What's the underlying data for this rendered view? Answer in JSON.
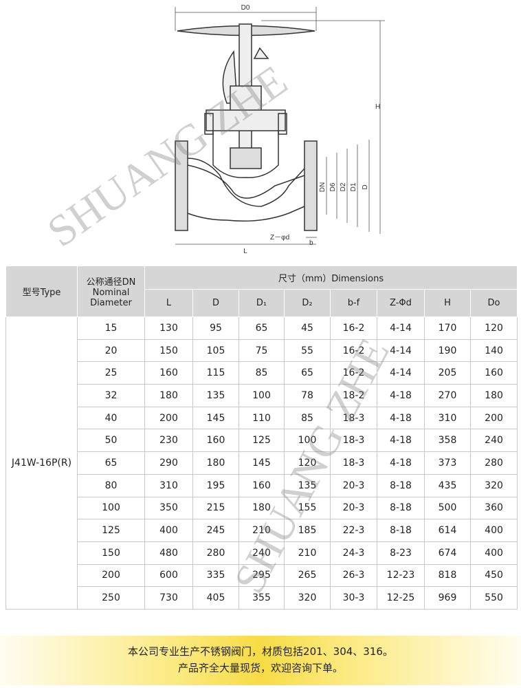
{
  "drawing": {
    "labels": {
      "d0": "D0",
      "h": "H",
      "dn": "DN",
      "d6": "D6",
      "d2": "D2",
      "d1": "D1",
      "d": "D",
      "z": "Z－φd",
      "b": "b",
      "l": "L"
    }
  },
  "watermark": [
    "SHUANG ZHE",
    "SHUANG ZHE"
  ],
  "table": {
    "header": {
      "type": "型号Type",
      "dn_cn": "公称通径DN",
      "dn_en": "Nominal Diameter",
      "dimensions": "尺寸（mm）Dimensions",
      "columns": [
        "L",
        "D",
        "D₁",
        "D₂",
        "b-f",
        "Z-Φd",
        "H",
        "Do"
      ]
    },
    "model": "J41W-16P(R)",
    "rows": [
      [
        15,
        130,
        95,
        65,
        45,
        "16-2",
        "4-14",
        170,
        120
      ],
      [
        20,
        150,
        105,
        75,
        55,
        "16-2",
        "4-14",
        190,
        140
      ],
      [
        25,
        160,
        115,
        85,
        65,
        "16-2",
        "4-14",
        205,
        160
      ],
      [
        32,
        180,
        135,
        100,
        78,
        "18-2",
        "4-18",
        270,
        180
      ],
      [
        40,
        200,
        145,
        110,
        85,
        "18-3",
        "4-18",
        310,
        200
      ],
      [
        50,
        230,
        160,
        125,
        100,
        "18-3",
        "4-18",
        358,
        240
      ],
      [
        65,
        290,
        180,
        145,
        120,
        "18-3",
        "4-18",
        373,
        280
      ],
      [
        80,
        310,
        195,
        160,
        135,
        "20-3",
        "8-18",
        435,
        320
      ],
      [
        100,
        350,
        215,
        180,
        155,
        "20-3",
        "8-18",
        500,
        360
      ],
      [
        125,
        400,
        245,
        210,
        185,
        "22-3",
        "8-18",
        614,
        400
      ],
      [
        150,
        480,
        280,
        240,
        210,
        "24-3",
        "8-23",
        674,
        400
      ],
      [
        200,
        600,
        335,
        295,
        265,
        "26-3",
        "12-23",
        818,
        450
      ],
      [
        250,
        730,
        405,
        355,
        320,
        "30-3",
        "12-25",
        969,
        550
      ]
    ]
  },
  "footer": {
    "lines": [
      "本公司专业生产不锈钢阀门，材质包括201、304、316。",
      "产品齐全大量现货，欢迎咨询下单。"
    ]
  }
}
